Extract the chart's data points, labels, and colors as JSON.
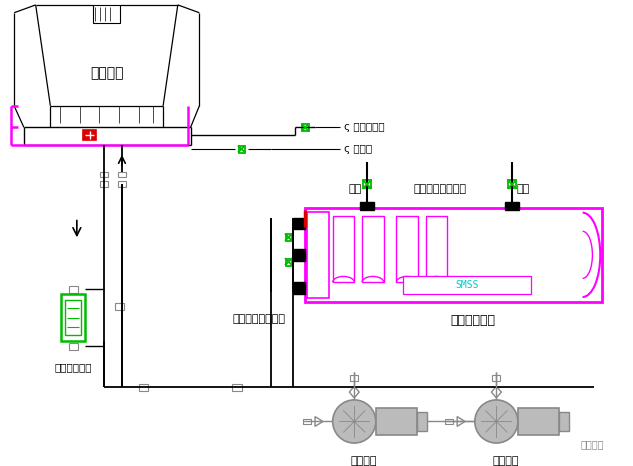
{
  "bg_color": "#ffffff",
  "fig_width": 6.33,
  "fig_height": 4.66,
  "dpi": 100,
  "colors": {
    "black": "#000000",
    "magenta": "#FF00FF",
    "cyan": "#00CCCC",
    "green": "#00BB00",
    "red": "#DD0000",
    "gray": "#888888",
    "lgray": "#BBBBBB",
    "dgray": "#444444"
  },
  "labels": {
    "cooling_tower": "冷却水塔",
    "inlet_water": "接自来水管",
    "drain_pipe": "排水管",
    "water_in": "进水",
    "evap_side": "蒸发侧（冷冻水）",
    "water_out": "出水",
    "cond_side": "冷凝侧（冷却水）",
    "chiller_unit": "水冷螺杆机组",
    "water_treatment": "电子水处理仳",
    "cooling_pump1": "冷却水泵",
    "cooling_pump2": "冷却水泵",
    "watermark": "制冷百科",
    "smss": "SMSS"
  }
}
